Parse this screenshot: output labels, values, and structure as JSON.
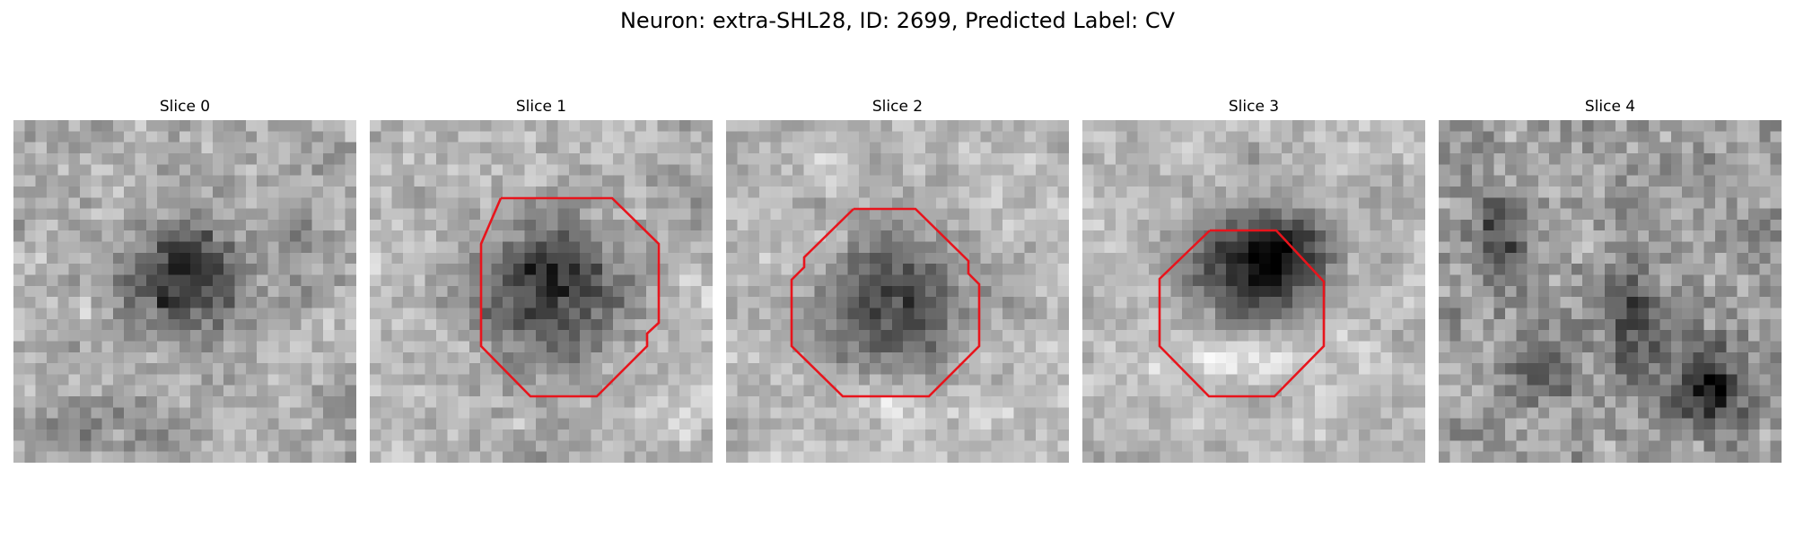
{
  "title": "Neuron: extra-SHL28, ID: 2699, Predicted Label: CV",
  "colors": {
    "contour": "#e8141c",
    "background": "#ffffff"
  },
  "slices": [
    {
      "label": "Slice 0",
      "has_contour": false
    },
    {
      "label": "Slice 1",
      "has_contour": true
    },
    {
      "label": "Slice 2",
      "has_contour": true
    },
    {
      "label": "Slice 3",
      "has_contour": true
    },
    {
      "label": "Slice 4",
      "has_contour": false
    }
  ]
}
